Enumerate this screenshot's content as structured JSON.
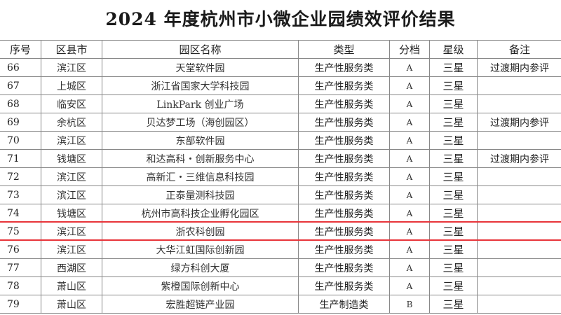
{
  "title": "2024 年度杭州市小微企业园绩效评价结果",
  "headers": [
    "序号",
    "区县市",
    "园区名称",
    "类型",
    "分档",
    "星级",
    "备注"
  ],
  "rows": [
    {
      "no": "66",
      "district": "滨江区",
      "name": "天堂软件园",
      "type": "生产性服务类",
      "grade": "A",
      "star": "三星",
      "note": "过渡期内参评"
    },
    {
      "no": "67",
      "district": "上城区",
      "name": "浙江省国家大学科技园",
      "type": "生产性服务类",
      "grade": "A",
      "star": "三星",
      "note": ""
    },
    {
      "no": "68",
      "district": "临安区",
      "name": "LinkPark 创业广场",
      "type": "生产性服务类",
      "grade": "A",
      "star": "三星",
      "note": ""
    },
    {
      "no": "69",
      "district": "余杭区",
      "name": "贝达梦工场（海创园区）",
      "type": "生产性服务类",
      "grade": "A",
      "star": "三星",
      "note": "过渡期内参评"
    },
    {
      "no": "70",
      "district": "滨江区",
      "name": "东部软件园",
      "type": "生产性服务类",
      "grade": "A",
      "star": "三星",
      "note": ""
    },
    {
      "no": "71",
      "district": "钱塘区",
      "name": "和达高科・创新服务中心",
      "type": "生产性服务类",
      "grade": "A",
      "star": "三星",
      "note": "过渡期内参评"
    },
    {
      "no": "72",
      "district": "滨江区",
      "name": "高新汇・三维信息科技园",
      "type": "生产性服务类",
      "grade": "A",
      "star": "三星",
      "note": ""
    },
    {
      "no": "73",
      "district": "滨江区",
      "name": "正泰量测科技园",
      "type": "生产性服务类",
      "grade": "A",
      "star": "三星",
      "note": ""
    },
    {
      "no": "74",
      "district": "钱塘区",
      "name": "杭州市高科技企业孵化园区",
      "type": "生产性服务类",
      "grade": "A",
      "star": "三星",
      "note": ""
    },
    {
      "no": "75",
      "district": "滨江区",
      "name": "浙农科创园",
      "type": "生产性服务类",
      "grade": "A",
      "star": "三星",
      "note": ""
    },
    {
      "no": "76",
      "district": "滨江区",
      "name": "大华江虹国际创新园",
      "type": "生产性服务类",
      "grade": "A",
      "star": "三星",
      "note": ""
    },
    {
      "no": "77",
      "district": "西湖区",
      "name": "绿方科创大厦",
      "type": "生产性服务类",
      "grade": "A",
      "star": "三星",
      "note": ""
    },
    {
      "no": "78",
      "district": "萧山区",
      "name": "紫橙国际创新中心",
      "type": "生产性服务类",
      "grade": "A",
      "star": "三星",
      "note": ""
    },
    {
      "no": "79",
      "district": "萧山区",
      "name": "宏胜超链产业园",
      "type": "生产制造类",
      "grade": "B",
      "star": "三星",
      "note": ""
    }
  ],
  "highlight_color": "#e8343a"
}
